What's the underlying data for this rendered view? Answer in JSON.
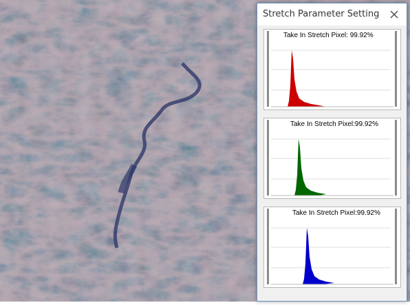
{
  "dialog": {
    "title": "Stretch Parameter Setting",
    "close_icon": "close-icon"
  },
  "panels": [
    {
      "band": "red",
      "color": "#cc0000",
      "label": "Take In Stretch Pixel: 99.92%"
    },
    {
      "band": "green",
      "color": "#006600",
      "label": "Take In Stretch Pixel:99.92%"
    },
    {
      "band": "blue",
      "color": "#0000cc",
      "label": "Take In Stretch Pixel:99.92%"
    }
  ]
}
